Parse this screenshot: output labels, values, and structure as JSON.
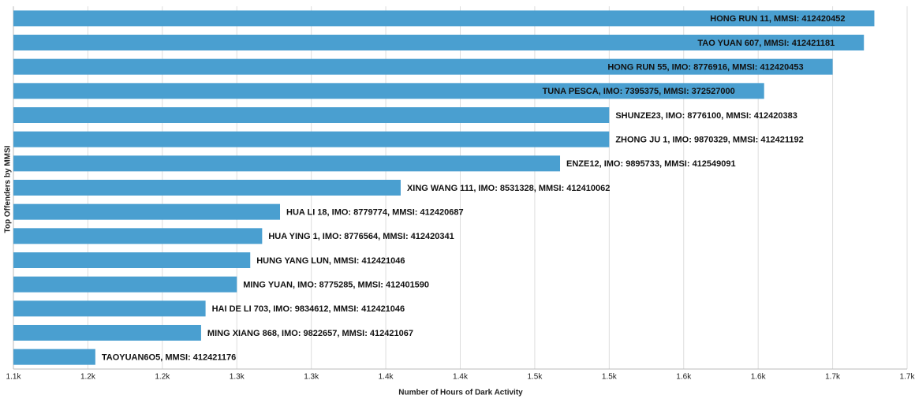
{
  "chart_data": {
    "type": "bar",
    "orientation": "horizontal",
    "xlabel": "Number of Hours of Dark Activity",
    "ylabel": "Top Offenders by MMSI",
    "categories": [
      "HONG RUN 11, MMSI: 412420452",
      "TAO YUAN 607, MMSI: 412421181",
      "HONG RUN 55, IMO: 8776916, MMSI: 412420453",
      "TUNA PESCA, IMO: 7395375, MMSI: 372527000",
      "SHUNZE23, IMO: 8776100, MMSI: 412420383",
      "ZHONG JU 1, IMO: 9870329, MMSI: 412421192",
      "ENZE12, IMO: 9895733, MMSI: 412549091",
      "XING WANG 111, IMO: 8531328, MMSI: 412410062",
      "HUA LI 18, IMO: 8779774, MMSI: 412420687",
      "HUA YING 1, IMO: 8776564, MMSI: 412420341",
      "HUNG YANG LUN, MMSI: 412421046",
      "MING YUAN, IMO: 8775285, MMSI: 412401590",
      "HAI DE LI 703, IMO: 9834612, MMSI: 412421046",
      "MING XIANG 868, IMO: 9822657, MMSI: 412421067",
      "TAOYUAN6O5, MMSI: 412421176"
    ],
    "values": [
      1678,
      1671,
      1650,
      1604,
      1500,
      1500,
      1467,
      1360,
      1279,
      1267,
      1259,
      1250,
      1229,
      1226,
      1155
    ],
    "color": "#4a9fd0",
    "xlim": [
      1100,
      1700
    ],
    "xticks": [
      {
        "value": 1100,
        "label": "1.1k"
      },
      {
        "value": 1150,
        "label": "1.2k"
      },
      {
        "value": 1200,
        "label": "1.2k"
      },
      {
        "value": 1250,
        "label": "1.3k"
      },
      {
        "value": 1300,
        "label": "1.3k"
      },
      {
        "value": 1350,
        "label": "1.4k"
      },
      {
        "value": 1400,
        "label": "1.4k"
      },
      {
        "value": 1450,
        "label": "1.5k"
      },
      {
        "value": 1500,
        "label": "1.5k"
      },
      {
        "value": 1550,
        "label": "1.6k"
      },
      {
        "value": 1600,
        "label": "1.6k"
      },
      {
        "value": 1650,
        "label": "1.7k"
      },
      {
        "value": 1700,
        "label": "1.7k"
      }
    ],
    "grid": true
  }
}
